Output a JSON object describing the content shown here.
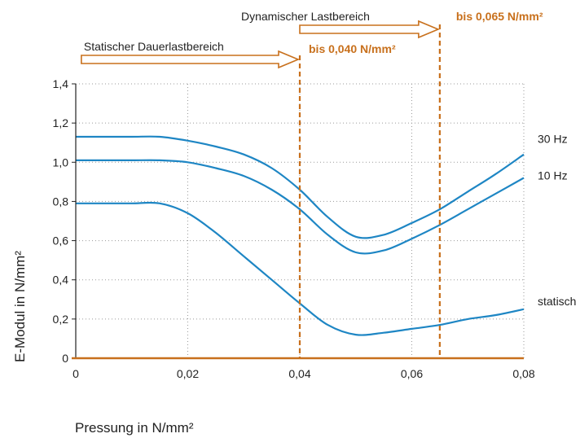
{
  "chart_data": {
    "type": "line",
    "xlabel": "Pressung in N/mm²",
    "ylabel": "E-Modul in N/mm²",
    "xlim": [
      0,
      0.08
    ],
    "ylim": [
      0,
      1.4
    ],
    "xticks": [
      {
        "v": 0,
        "label": "0"
      },
      {
        "v": 0.02,
        "label": "0,02"
      },
      {
        "v": 0.04,
        "label": "0,04"
      },
      {
        "v": 0.06,
        "label": "0,06"
      },
      {
        "v": 0.08,
        "label": "0,08"
      }
    ],
    "yticks": [
      {
        "v": 0,
        "label": "0"
      },
      {
        "v": 0.2,
        "label": "0,2"
      },
      {
        "v": 0.4,
        "label": "0,4"
      },
      {
        "v": 0.6,
        "label": "0,6"
      },
      {
        "v": 0.8,
        "label": "0,8"
      },
      {
        "v": 1.0,
        "label": "1,0"
      },
      {
        "v": 1.2,
        "label": "1,2"
      },
      {
        "v": 1.4,
        "label": "1,4"
      }
    ],
    "grid": true,
    "series": [
      {
        "name": "30 Hz",
        "x": [
          0,
          0.005,
          0.01,
          0.015,
          0.02,
          0.025,
          0.03,
          0.035,
          0.04,
          0.045,
          0.05,
          0.055,
          0.06,
          0.065,
          0.07,
          0.075,
          0.08
        ],
        "y": [
          1.13,
          1.13,
          1.13,
          1.13,
          1.11,
          1.08,
          1.04,
          0.97,
          0.86,
          0.72,
          0.62,
          0.63,
          0.69,
          0.76,
          0.85,
          0.94,
          1.04
        ]
      },
      {
        "name": "10 Hz",
        "x": [
          0,
          0.005,
          0.01,
          0.015,
          0.02,
          0.025,
          0.03,
          0.035,
          0.04,
          0.045,
          0.05,
          0.055,
          0.06,
          0.065,
          0.07,
          0.075,
          0.08
        ],
        "y": [
          1.01,
          1.01,
          1.01,
          1.01,
          1.0,
          0.97,
          0.93,
          0.86,
          0.76,
          0.63,
          0.54,
          0.55,
          0.61,
          0.68,
          0.76,
          0.84,
          0.92
        ]
      },
      {
        "name": "statisch",
        "x": [
          0,
          0.005,
          0.01,
          0.015,
          0.02,
          0.025,
          0.03,
          0.035,
          0.04,
          0.045,
          0.05,
          0.055,
          0.06,
          0.065,
          0.07,
          0.075,
          0.08
        ],
        "y": [
          0.79,
          0.79,
          0.79,
          0.79,
          0.74,
          0.64,
          0.52,
          0.4,
          0.28,
          0.17,
          0.12,
          0.13,
          0.15,
          0.17,
          0.2,
          0.22,
          0.25
        ]
      }
    ],
    "annotations": [
      {
        "kind": "range",
        "text": "Statischer Dauerlastbereich",
        "x_start": 0.001,
        "x_end": 0.04
      },
      {
        "kind": "range",
        "text": "Dynamischer Lastbereich",
        "x_start": 0.04,
        "x_end": 0.065
      },
      {
        "kind": "limit",
        "text": "bis 0,040 N/mm²",
        "x": 0.04
      },
      {
        "kind": "limit",
        "text": "bis 0,065 N/mm²",
        "x": 0.065
      }
    ]
  },
  "colors": {
    "curve": "#1e86c4",
    "accent": "#c8701c",
    "grid": "#9a9a9a",
    "axis": "#c8701c"
  }
}
